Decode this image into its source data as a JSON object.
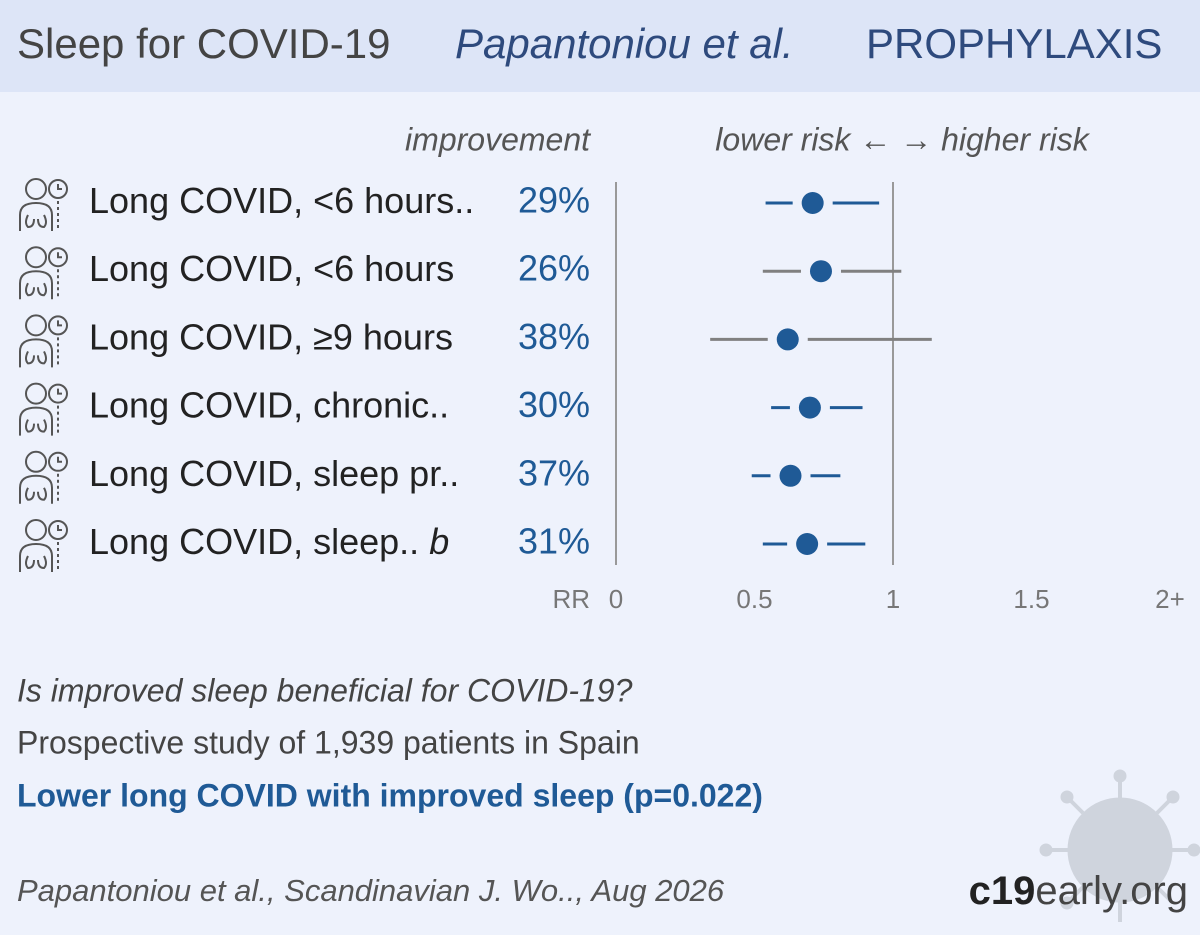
{
  "header": {
    "title": "Sleep for COVID-19",
    "authors": "Papantoniou et al.",
    "category": "PROPHYLAXIS"
  },
  "chart_data": {
    "type": "forest",
    "improvement_header": "improvement",
    "direction_label": "lower risk ← → higher risk",
    "xlabel": "RR",
    "categories": [
      "Long COVID, <6 hours..",
      "Long COVID, <6 hours",
      "Long COVID, ≥9 hours",
      "Long COVID, chronic..",
      "Long COVID, sleep pr..",
      "Long COVID, sleep.."
    ],
    "category_notes": [
      null,
      null,
      null,
      null,
      null,
      "b"
    ],
    "improvement": {
      "values": [
        29,
        26,
        38,
        30,
        37,
        31
      ],
      "value_labels": [
        "29%",
        "26%",
        "38%",
        "30%",
        "37%",
        "31%"
      ]
    },
    "estimates": [
      0.71,
      0.74,
      0.62,
      0.7,
      0.63,
      0.69
    ],
    "ci_low": [
      0.54,
      0.53,
      0.34,
      0.56,
      0.49,
      0.53
    ],
    "ci_high": [
      0.95,
      1.03,
      1.14,
      0.89,
      0.81,
      0.9
    ],
    "color": "#1f5a96",
    "muted_color": "#808080",
    "xlim": [
      0,
      2
    ],
    "xticks": [
      0,
      0.5,
      1,
      1.5,
      {
        "value": 2,
        "label": "2+"
      }
    ]
  },
  "footer": {
    "question": "Is improved sleep beneficial for COVID-19?",
    "study": "Prospective study of 1,939 patients in Spain",
    "conclusion": "Lower long COVID with improved sleep (p=0.022)",
    "citation": "Papantoniou et al., Scandinavian J. Wo.., Aug 2026",
    "brand_bold": "c19",
    "brand_rest": "early.org"
  }
}
